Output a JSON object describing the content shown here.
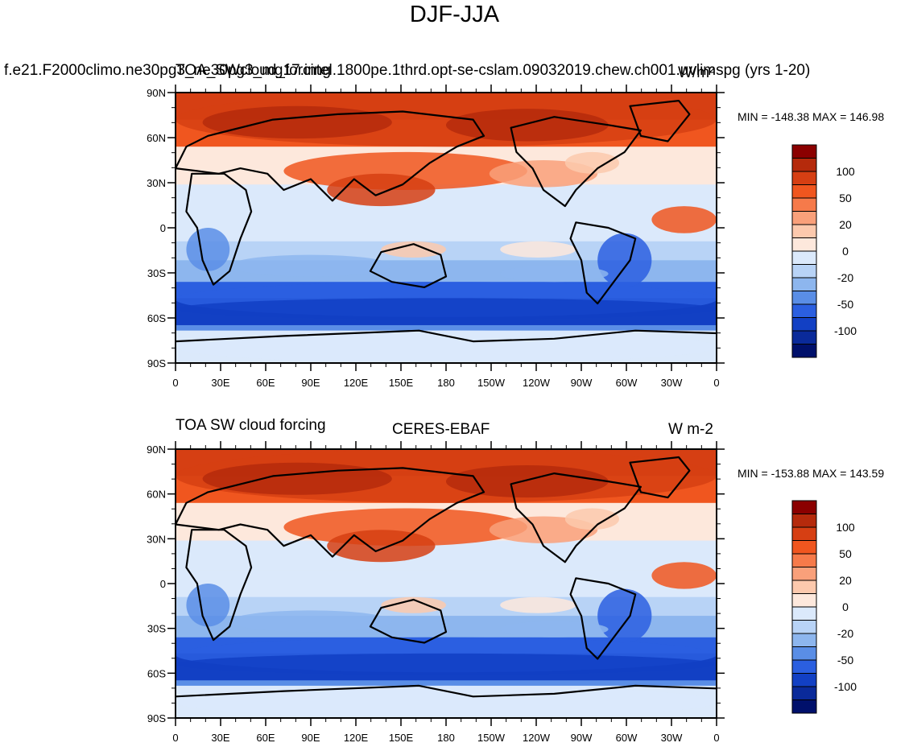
{
  "title": "DJF-JJA",
  "panels": [
    {
      "left_title": "f.e21.F2000climo.ne30pg3_ne30pg3_mg17.intel.1800pe.1thrd.opt-se-cslam.09032019.chew.ch001.uvlimspg (yrs 1-20)",
      "center_title": "TOA_SWcloud_forcing",
      "units": "W/m²",
      "stats": "MIN = -148.38 MAX = 146.98"
    },
    {
      "left_title": "TOA SW cloud forcing",
      "center_title": "CERES-EBAF",
      "units": "W m-2",
      "stats": "MIN = -153.88 MAX = 143.59"
    }
  ],
  "lat_labels": [
    "90N",
    "60N",
    "30N",
    "0",
    "30S",
    "60S",
    "90S"
  ],
  "lon_labels": [
    "0",
    "30E",
    "60E",
    "90E",
    "120E",
    "150E",
    "180",
    "150W",
    "120W",
    "90W",
    "60W",
    "30W",
    "0"
  ],
  "colorbar": {
    "labels": [
      "100",
      "50",
      "20",
      "0",
      "-20",
      "-50",
      "-100"
    ],
    "colors": [
      "#8b0000",
      "#b52a0c",
      "#d63f13",
      "#f0561f",
      "#f67a4a",
      "#f9a07a",
      "#fcc9ad",
      "#fde8dc",
      "#dbe9fb",
      "#b8d3f6",
      "#8db6ee",
      "#5a8ee6",
      "#2b5fe0",
      "#1240c4",
      "#0a2a9a",
      "#00106b"
    ]
  },
  "chart_data": [
    {
      "type": "heatmap",
      "title": "DJF-JJA",
      "left_title": "f.e21.F2000climo.ne30pg3_ne30pg3_mg17.intel.1800pe.1thrd.opt-se-cslam.09032019.chew.ch001.uvlimspg (yrs 1-20)",
      "center_title": "TOA_SWcloud_forcing",
      "units": "W/m²",
      "min": -148.38,
      "max": 146.98,
      "x_ticks": [
        "0",
        "30E",
        "60E",
        "90E",
        "120E",
        "150E",
        "180",
        "150W",
        "120W",
        "90W",
        "60W",
        "30W",
        "0"
      ],
      "y_ticks": [
        "90N",
        "60N",
        "30N",
        "0",
        "30S",
        "60S",
        "90S"
      ],
      "color_levels": [
        "100",
        "50",
        "20",
        "0",
        "-20",
        "-50",
        "-100"
      ]
    },
    {
      "type": "heatmap",
      "left_title": "TOA SW cloud forcing",
      "center_title": "CERES-EBAF",
      "units": "W m-2",
      "min": -153.88,
      "max": 143.59,
      "x_ticks": [
        "0",
        "30E",
        "60E",
        "90E",
        "120E",
        "150E",
        "180",
        "150W",
        "120W",
        "90W",
        "60W",
        "30W",
        "0"
      ],
      "y_ticks": [
        "90N",
        "60N",
        "30N",
        "0",
        "30S",
        "60S",
        "90S"
      ],
      "color_levels": [
        "100",
        "50",
        "20",
        "0",
        "-20",
        "-50",
        "-100"
      ]
    }
  ]
}
